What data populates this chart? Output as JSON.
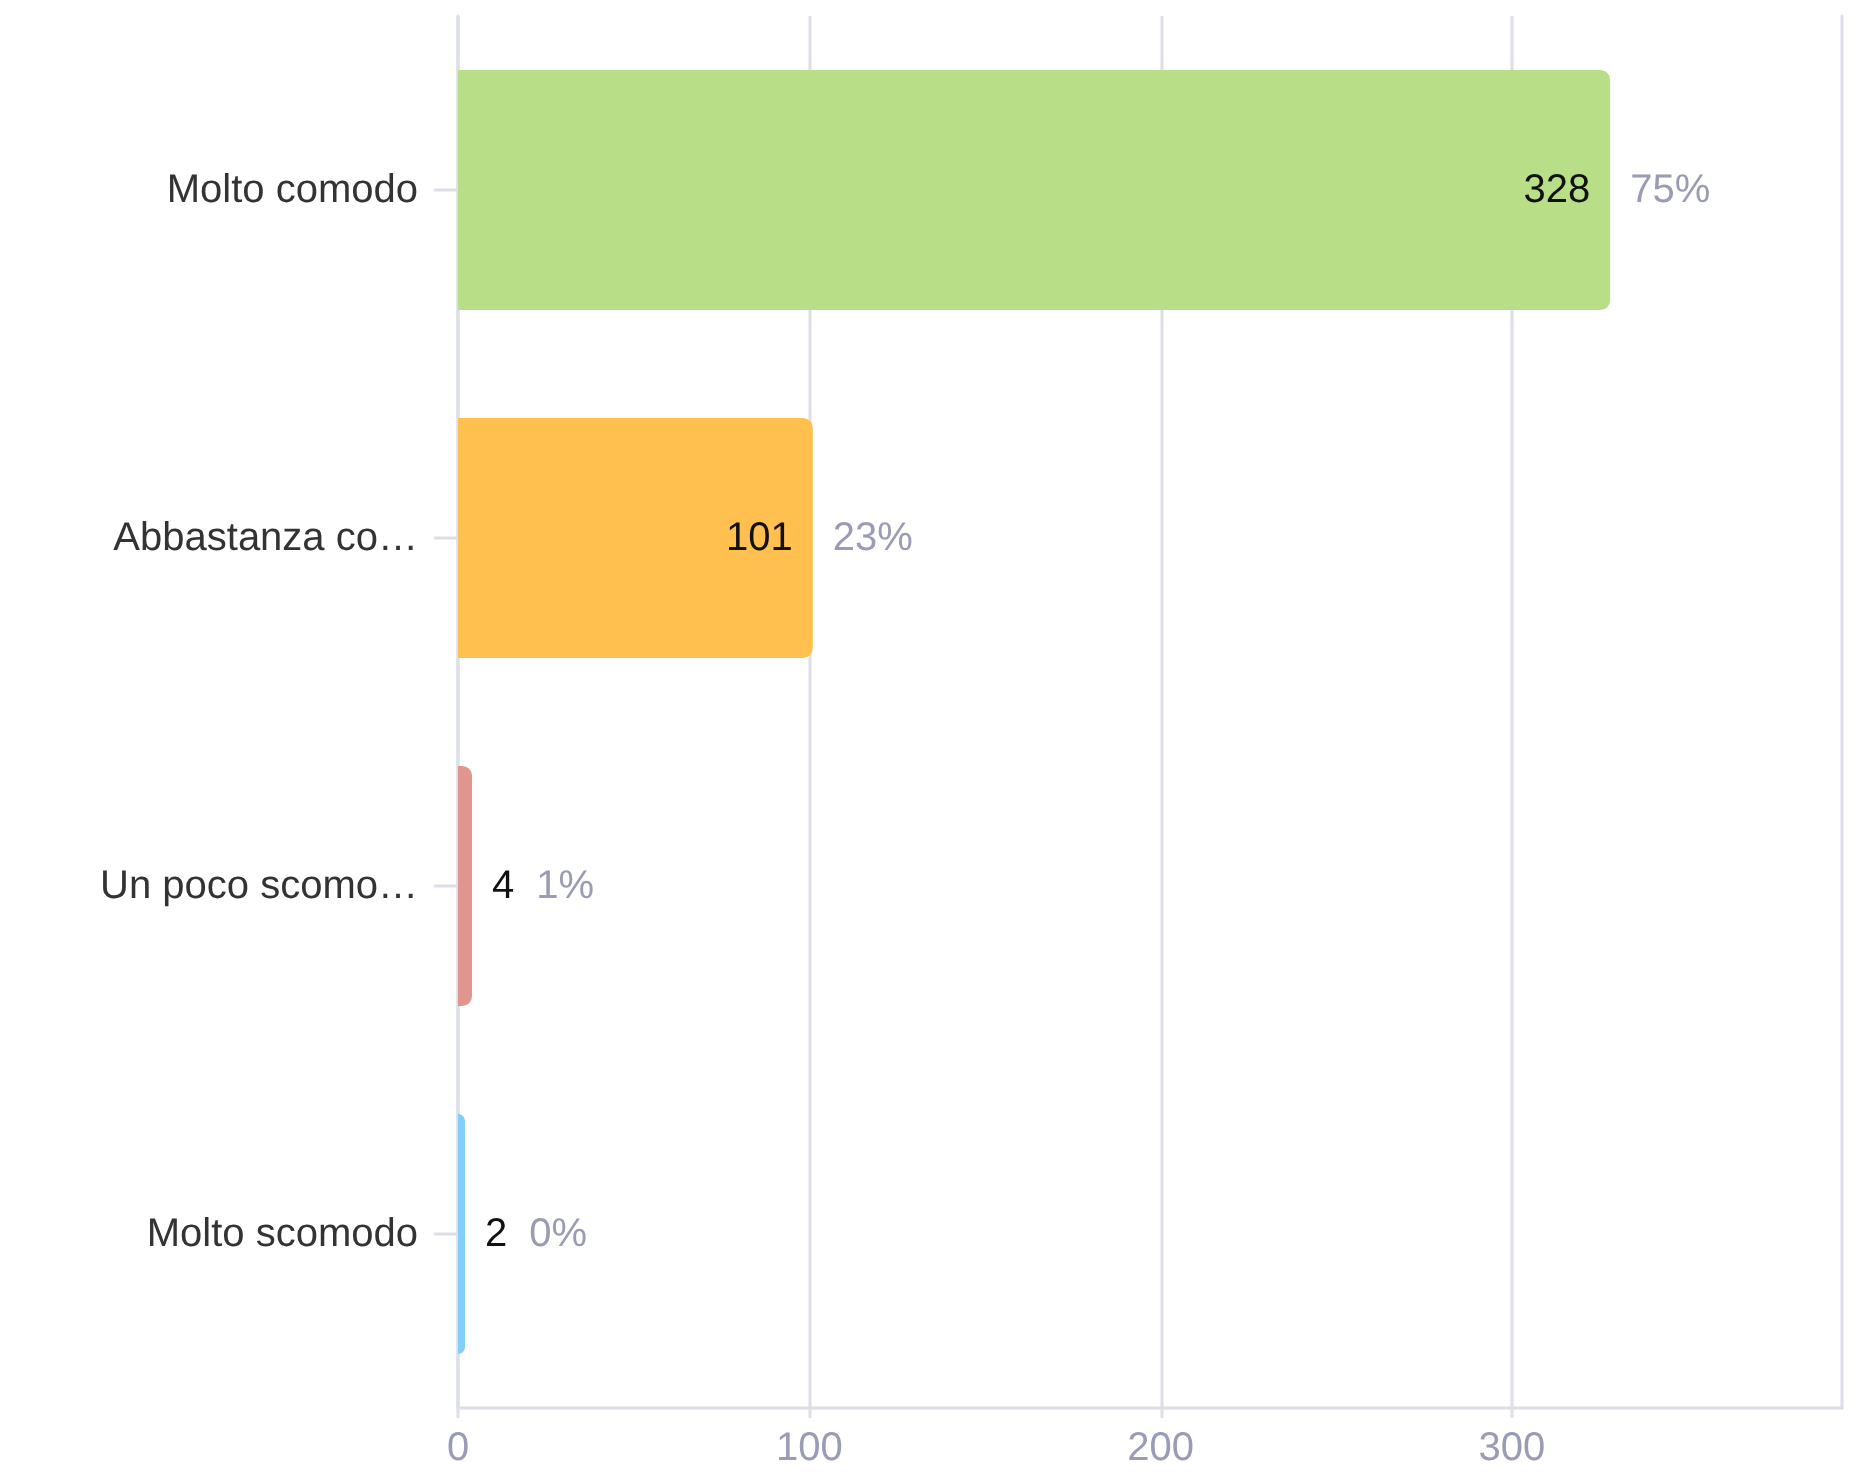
{
  "chart_data": {
    "type": "bar",
    "orientation": "horizontal",
    "categories": [
      "Molto comodo",
      "Abbastanza co…",
      "Un poco scomo…",
      "Molto scomodo"
    ],
    "values": [
      328,
      101,
      4,
      2
    ],
    "colors": [
      "#b8df88",
      "#ffc04f",
      "#e0968f",
      "#82cffa"
    ],
    "value_labels": [
      "328 75%",
      "101 23%",
      "4 1%",
      "2 0%"
    ],
    "xlim": [
      0,
      394
    ],
    "xticks": [
      0,
      100,
      200,
      300
    ],
    "grid": "x"
  }
}
